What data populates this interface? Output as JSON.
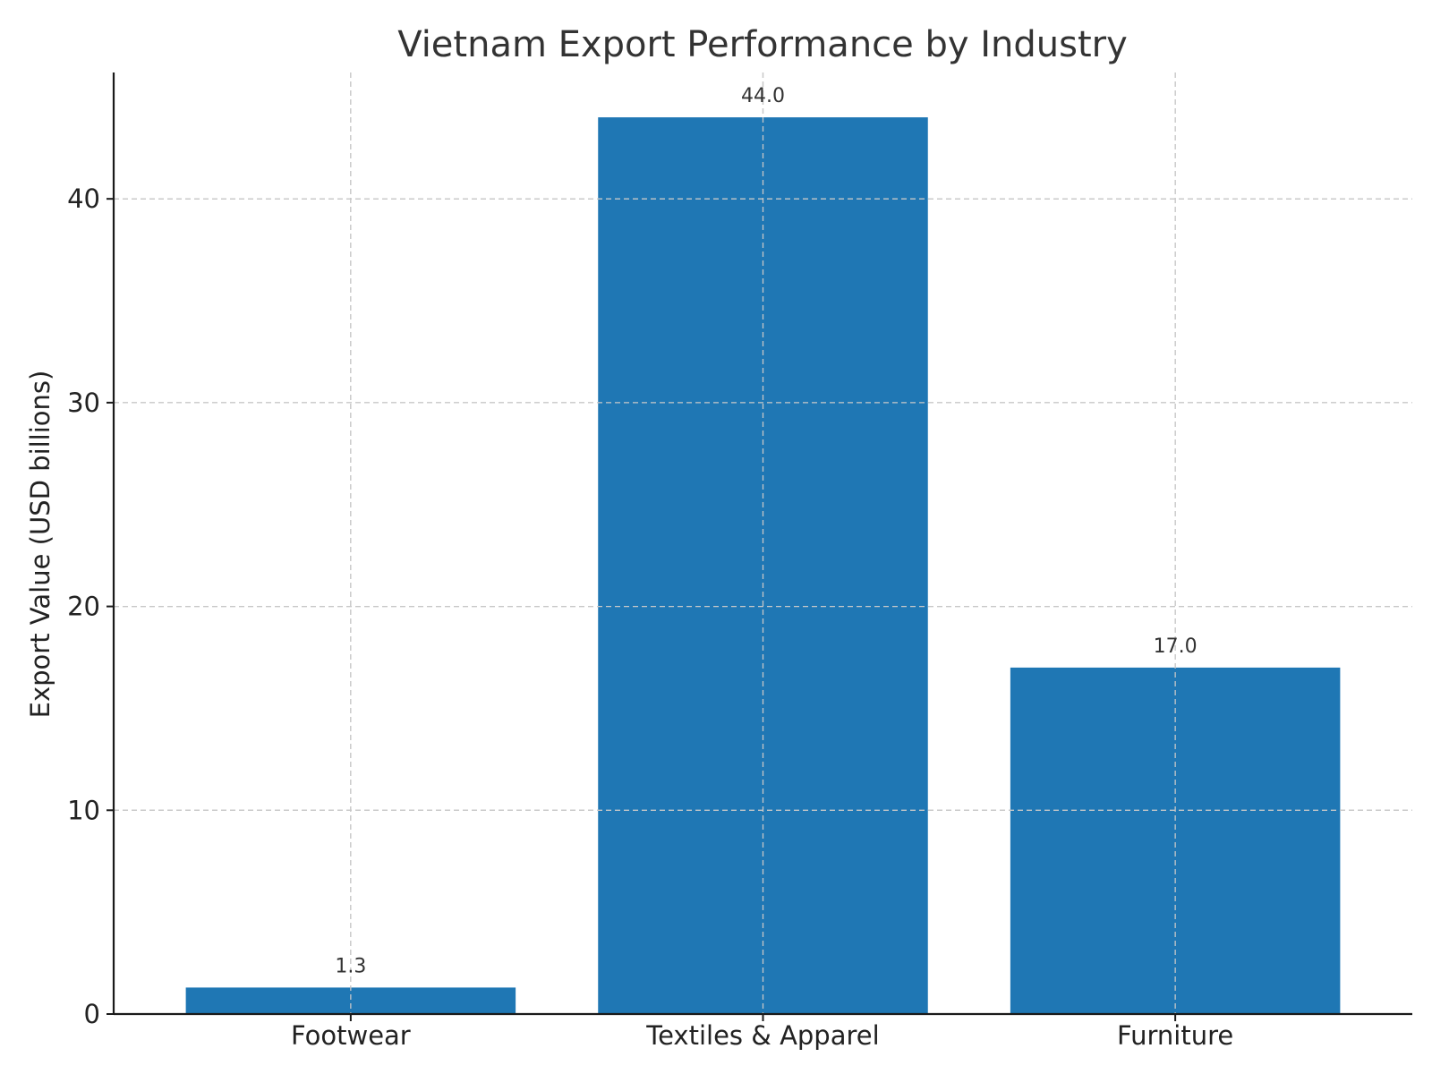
{
  "chart_data": {
    "type": "bar",
    "title": "Vietnam Export Performance by Industry",
    "xlabel": "",
    "ylabel": "Export Value (USD billions)",
    "categories": [
      "Footwear",
      "Textiles & Apparel",
      "Furniture"
    ],
    "values": [
      1.3,
      44.0,
      17.0
    ],
    "value_labels": [
      "1.3",
      "44.0",
      "17.0"
    ],
    "ylim": [
      0,
      46.2
    ],
    "yticks": [
      0,
      10,
      20,
      30,
      40
    ],
    "grid": true,
    "bar_color": "#1f77b4",
    "grid_color": "#c8c8c8"
  }
}
